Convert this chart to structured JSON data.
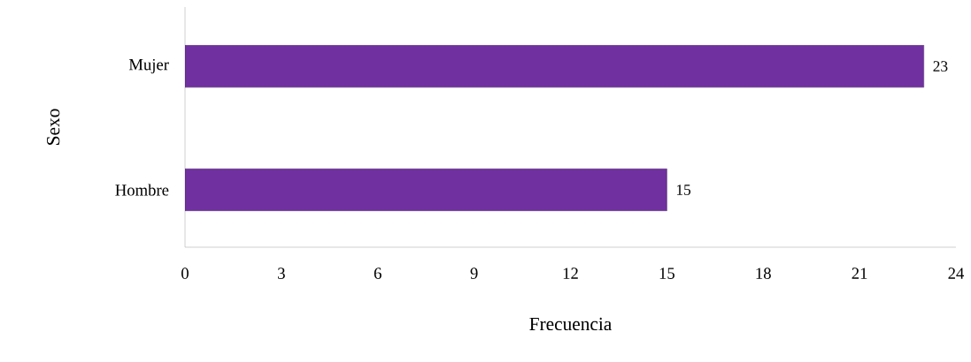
{
  "chart_data": {
    "type": "bar",
    "orientation": "horizontal",
    "xlabel": "Frecuencia",
    "ylabel": "Sexo",
    "categories": [
      "Mujer",
      "Hombre"
    ],
    "values": [
      23,
      15
    ],
    "color": "#7030a0",
    "data_labels": true,
    "xlim": [
      0,
      24
    ],
    "xticks": [
      0,
      3,
      6,
      9,
      12,
      15,
      18,
      21,
      24
    ],
    "grid": false
  }
}
